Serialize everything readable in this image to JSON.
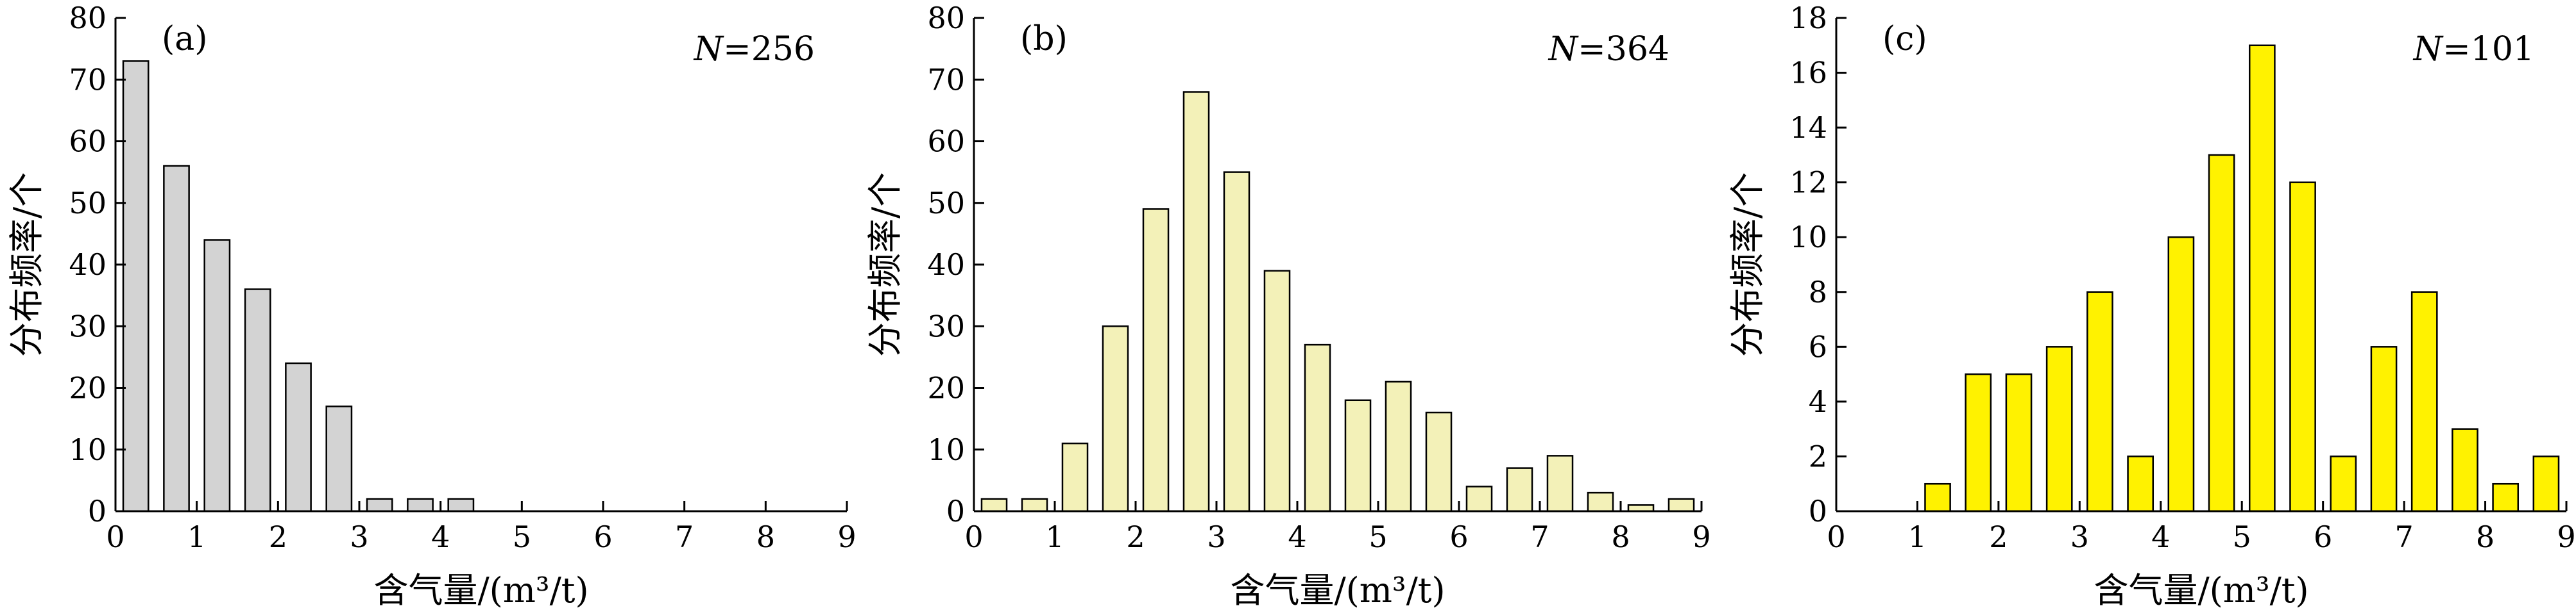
{
  "chart_data": [
    {
      "type": "bar",
      "panel_label": "(a)",
      "n_italic": "N",
      "n_value": "=256",
      "xlabel": "含气量/(m³/t)",
      "ylabel": "分布频率/个",
      "xlim": [
        0,
        9
      ],
      "ylim": [
        0,
        80
      ],
      "xticks": [
        0,
        1,
        2,
        3,
        4,
        5,
        6,
        7,
        8,
        9
      ],
      "yticks": [
        0,
        10,
        20,
        30,
        40,
        50,
        60,
        70,
        80
      ],
      "bin_width": 0.5,
      "bar_color": "#d3d3d3",
      "x": [
        0.25,
        0.75,
        1.25,
        1.75,
        2.25,
        2.75,
        3.25,
        3.75,
        4.25
      ],
      "values": [
        73,
        56,
        44,
        36,
        24,
        17,
        2,
        2,
        2
      ]
    },
    {
      "type": "bar",
      "panel_label": "(b)",
      "n_italic": "N",
      "n_value": "=364",
      "xlabel": "含气量/(m³/t)",
      "ylabel": "分布频率/个",
      "xlim": [
        0,
        9
      ],
      "ylim": [
        0,
        80
      ],
      "xticks": [
        0,
        1,
        2,
        3,
        4,
        5,
        6,
        7,
        8,
        9
      ],
      "yticks": [
        0,
        10,
        20,
        30,
        40,
        50,
        60,
        70,
        80
      ],
      "bin_width": 0.5,
      "bar_color": "#f3f1b8",
      "x": [
        0.25,
        0.75,
        1.25,
        1.75,
        2.25,
        2.75,
        3.25,
        3.75,
        4.25,
        4.75,
        5.25,
        5.75,
        6.25,
        6.75,
        7.25,
        7.75,
        8.25,
        8.75
      ],
      "values": [
        2,
        2,
        11,
        30,
        49,
        68,
        55,
        39,
        27,
        18,
        21,
        16,
        4,
        7,
        9,
        3,
        1,
        2
      ]
    },
    {
      "type": "bar",
      "panel_label": "(c)",
      "n_italic": "N",
      "n_value": "=101",
      "xlabel": "含气量/(m³/t)",
      "ylabel": "分布频率/个",
      "xlim": [
        0,
        9
      ],
      "ylim": [
        0,
        18
      ],
      "xticks": [
        0,
        1,
        2,
        3,
        4,
        5,
        6,
        7,
        8,
        9
      ],
      "yticks": [
        0,
        2,
        4,
        6,
        8,
        10,
        12,
        14,
        16,
        18
      ],
      "bin_width": 0.5,
      "bar_color": "#fff200",
      "x": [
        1.25,
        1.75,
        2.25,
        2.75,
        3.25,
        3.75,
        4.25,
        4.75,
        5.25,
        5.75,
        6.25,
        6.75,
        7.25,
        7.75,
        8.25,
        8.75
      ],
      "values": [
        1,
        5,
        5,
        6,
        8,
        2,
        10,
        13,
        17,
        12,
        2,
        6,
        8,
        3,
        1,
        2
      ]
    }
  ]
}
